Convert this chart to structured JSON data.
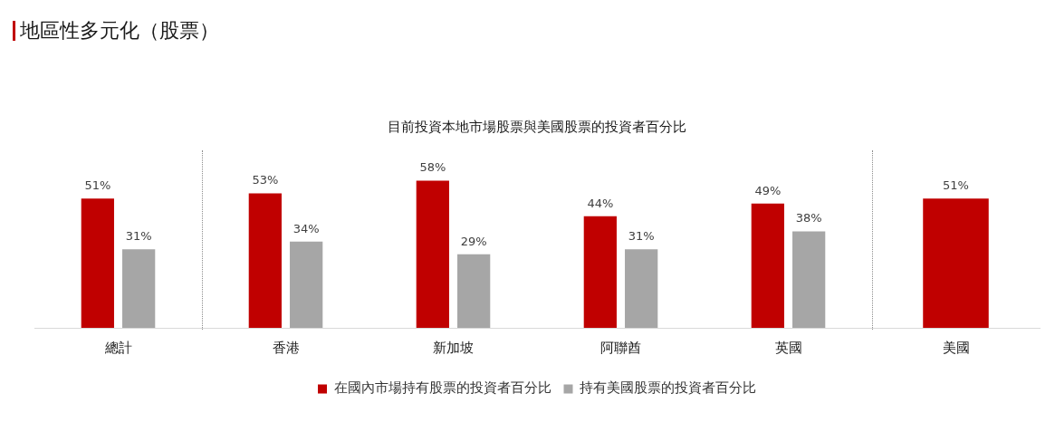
{
  "chart_data": {
    "type": "bar",
    "title": "地區性多元化（股票）",
    "subtitle": "目前投資本地市場股票與美國股票的投資者百分比",
    "categories": [
      "總計",
      "香港",
      "新加坡",
      "阿聯酋",
      "英國",
      "美國"
    ],
    "series": [
      {
        "name": "在國內市場持有股票的投資者百分比",
        "color": "#c00000",
        "values": [
          51,
          53,
          58,
          44,
          49,
          51
        ],
        "value_labels": [
          "51%",
          "53%",
          "58%",
          "44%",
          "49%",
          "51%"
        ]
      },
      {
        "name": "持有美國股票的投資者百分比",
        "color": "#a6a6a6",
        "values": [
          31,
          34,
          29,
          31,
          38,
          null
        ],
        "value_labels": [
          "31%",
          "34%",
          "29%",
          "31%",
          "38%",
          null
        ]
      }
    ],
    "ylim": [
      0,
      70
    ],
    "tick_labels": "x",
    "grid": false,
    "legend": "bottom"
  }
}
